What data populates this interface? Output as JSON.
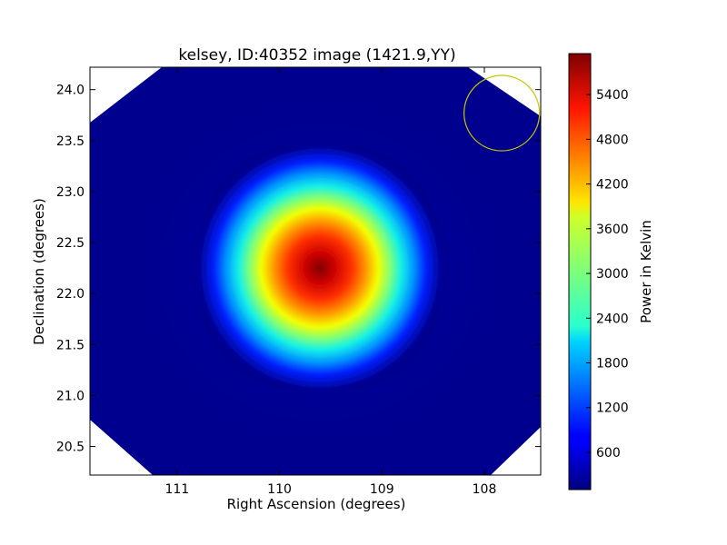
{
  "chart_data": {
    "type": "heatmap",
    "title": "kelsey, ID:40352 image (1421.9,YY)",
    "xlabel": "Right Ascension (degrees)",
    "ylabel": "Declination (degrees)",
    "colorbar_label": "Power in Kelvin",
    "x_inverted": true,
    "xlim": [
      111.85,
      107.45
    ],
    "ylim": [
      20.22,
      24.22
    ],
    "x_ticks": [
      111,
      110,
      109,
      108
    ],
    "x_tick_labels": [
      "111",
      "110",
      "109",
      "108"
    ],
    "y_ticks": [
      20.5,
      21.0,
      21.5,
      22.0,
      22.5,
      23.0,
      23.5,
      24.0
    ],
    "y_tick_labels": [
      "20.5",
      "21.0",
      "21.5",
      "22.0",
      "22.5",
      "23.0",
      "23.5",
      "24.0"
    ],
    "colorbar_range": [
      100,
      5950
    ],
    "colorbar_ticks": [
      600,
      1200,
      1800,
      2400,
      3000,
      3600,
      4200,
      4800,
      5400
    ],
    "colorbar_tick_labels": [
      "600",
      "1200",
      "1800",
      "2400",
      "3000",
      "3600",
      "4200",
      "4800",
      "5400"
    ],
    "colormap": "jet",
    "source_peak": {
      "ra": 109.55,
      "dec": 22.22,
      "value": 5950
    },
    "beam_marker": {
      "ra_center": 107.83,
      "dec_center": 23.77,
      "radius_deg": 0.37,
      "color": "#c8c800"
    },
    "background_level": 100,
    "grid": false
  }
}
